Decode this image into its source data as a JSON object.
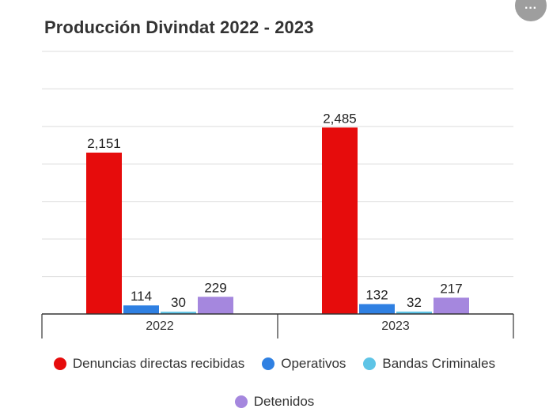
{
  "menu": {
    "icon": "more-horizontal-icon",
    "label": "···"
  },
  "chart_data": {
    "type": "bar",
    "title": "Producción Divindat 2022 - 2023",
    "xlabel": "",
    "ylabel": "",
    "categories": [
      "2022",
      "2023"
    ],
    "ylim": [
      0,
      3500
    ],
    "grid": true,
    "legend_position": "bottom",
    "series": [
      {
        "name": "Denuncias directas recibidas",
        "color": "#e60c0c",
        "values": [
          2151,
          2485
        ],
        "labels": [
          "2,151",
          "2,485"
        ]
      },
      {
        "name": "Operativos",
        "color": "#2f80e2",
        "values": [
          114,
          132
        ],
        "labels": [
          "114",
          "132"
        ]
      },
      {
        "name": "Bandas Criminales",
        "color": "#5ec4e6",
        "values": [
          30,
          32
        ],
        "labels": [
          "30",
          "32"
        ]
      },
      {
        "name": "Detenidos",
        "color": "#a587de",
        "values": [
          229,
          217
        ],
        "labels": [
          "229",
          "217"
        ]
      }
    ]
  }
}
